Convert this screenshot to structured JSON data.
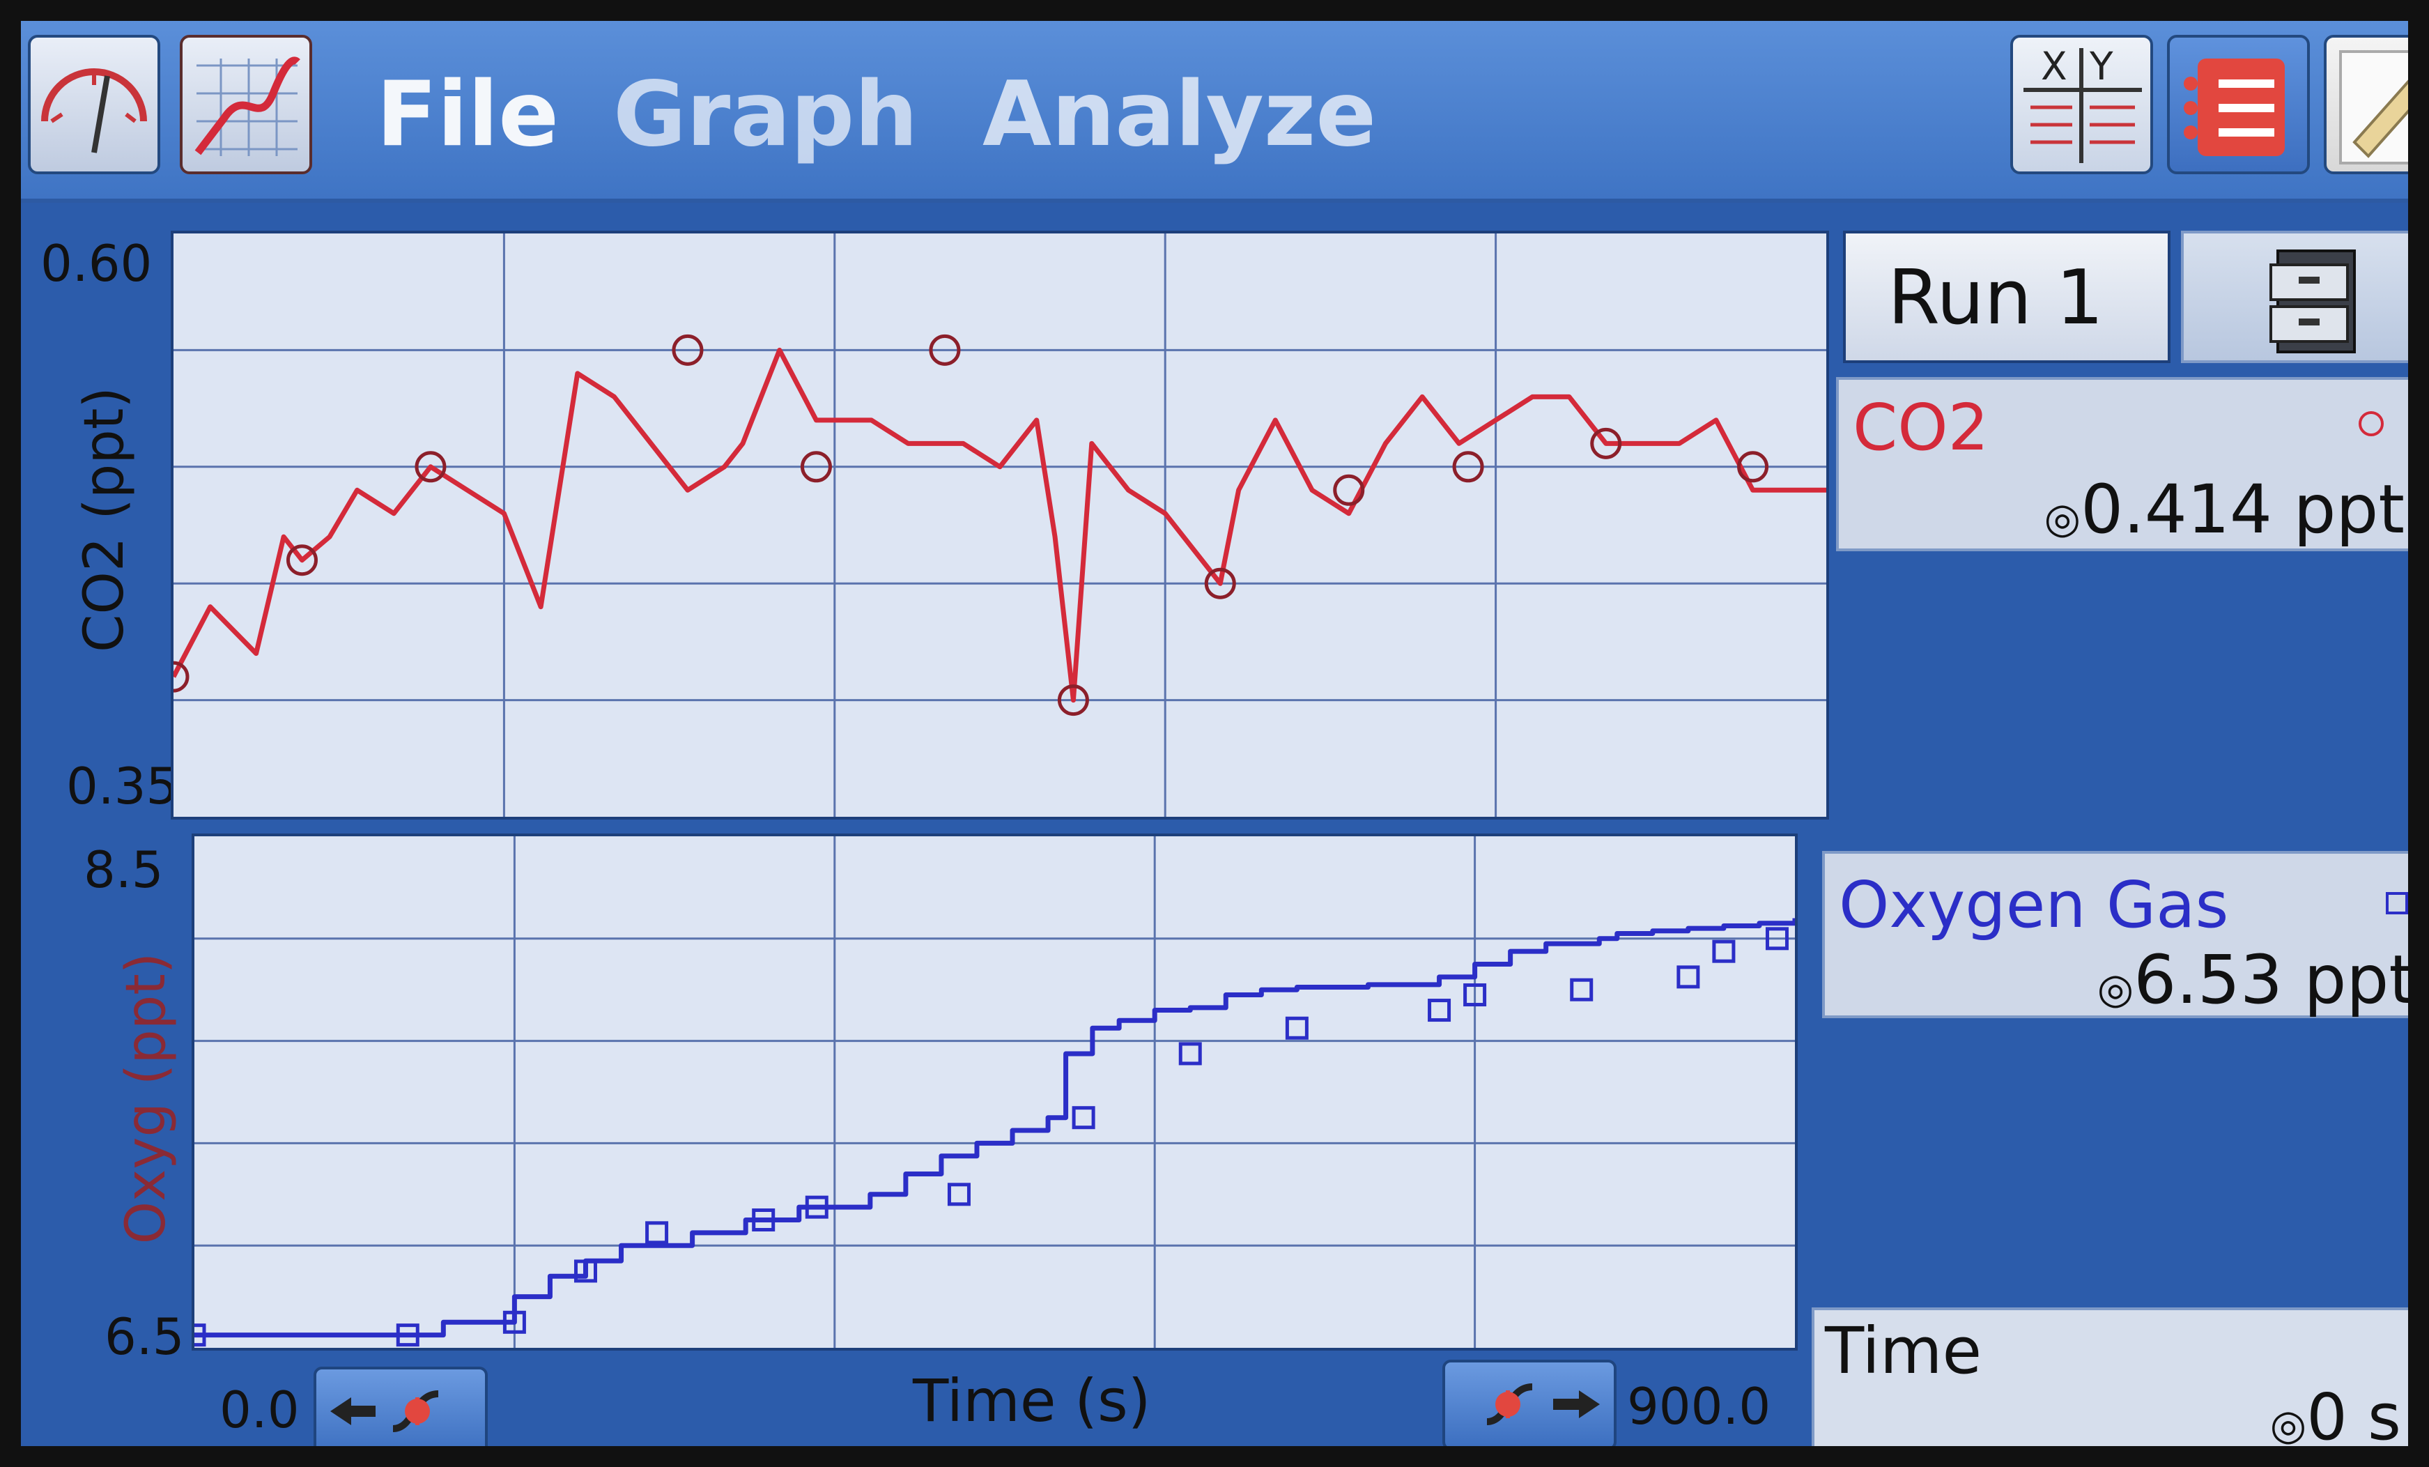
{
  "menu": {
    "file": "File",
    "graph": "Graph",
    "analyze": "Analyze"
  },
  "icons": {
    "meter": "meter-icon",
    "graph": "graph-icon",
    "table": "xy-table-icon",
    "list": "list-icon",
    "notes": "notes-icon",
    "cabinet": "file-cabinet-icon"
  },
  "run": {
    "label": "Run 1"
  },
  "sensors": {
    "co2": {
      "name": "CO2",
      "value": "0.414 ppt",
      "color": "#d42a3a"
    },
    "oxygen": {
      "name": "Oxygen Gas",
      "value": "6.53 ppt",
      "color": "#2b2ec7"
    },
    "time": {
      "name": "Time",
      "value": "0 s"
    }
  },
  "graph": {
    "xlabel": "Time (s)",
    "x_min_label": "0.0",
    "x_max_label": "900.0",
    "top": {
      "ylabel": "CO2 (ppt)",
      "y_max_label": "0.60",
      "y_min_label": "0.35"
    },
    "bottom": {
      "ylabel": "Oxyg (ppt)",
      "y_max_label": "8.5",
      "y_min_label": "6.5"
    }
  },
  "chart_data": [
    {
      "type": "line",
      "title": "",
      "xlabel": "Time (s)",
      "ylabel": "CO2 (ppt)",
      "xlim": [
        0,
        900
      ],
      "ylim": [
        0.35,
        0.6
      ],
      "color": "#d42a3a",
      "series": [
        {
          "x": [
            0,
            20,
            45,
            60,
            70,
            85,
            100,
            120,
            140,
            160,
            180,
            200,
            220,
            240,
            260,
            270,
            280,
            300,
            310,
            330,
            350,
            380,
            400,
            430,
            450,
            470,
            480,
            490,
            500,
            520,
            540,
            560,
            570,
            580,
            600,
            620,
            640,
            660,
            680,
            700,
            720,
            740,
            760,
            780,
            800,
            820,
            840,
            860,
            880,
            900
          ],
          "y": [
            0.41,
            0.44,
            0.42,
            0.47,
            0.46,
            0.47,
            0.49,
            0.48,
            0.5,
            0.49,
            0.48,
            0.44,
            0.54,
            0.53,
            0.51,
            0.5,
            0.49,
            0.5,
            0.51,
            0.55,
            0.52,
            0.52,
            0.51,
            0.51,
            0.5,
            0.52,
            0.47,
            0.4,
            0.51,
            0.49,
            0.48,
            0.46,
            0.45,
            0.49,
            0.52,
            0.49,
            0.48,
            0.51,
            0.53,
            0.51,
            0.52,
            0.53,
            0.53,
            0.51,
            0.51,
            0.51,
            0.52,
            0.49,
            0.49,
            0.49
          ]
        }
      ],
      "markers_x": [
        0,
        70,
        140,
        280,
        350,
        420,
        490,
        570,
        640,
        705,
        780,
        860
      ],
      "markers_y": [
        0.41,
        0.46,
        0.5,
        0.55,
        0.5,
        0.55,
        0.4,
        0.45,
        0.49,
        0.5,
        0.51,
        0.5
      ]
    },
    {
      "type": "line",
      "title": "",
      "xlabel": "Time (s)",
      "ylabel": "Oxyg (ppt)",
      "xlim": [
        0,
        900
      ],
      "ylim": [
        6.5,
        8.5
      ],
      "color": "#2b2ec7",
      "series": [
        {
          "x": [
            0,
            60,
            120,
            140,
            180,
            200,
            220,
            240,
            280,
            310,
            340,
            380,
            400,
            420,
            440,
            460,
            480,
            490,
            505,
            520,
            540,
            560,
            580,
            600,
            620,
            640,
            660,
            700,
            720,
            740,
            760,
            790,
            800,
            820,
            840,
            860,
            880,
            900
          ],
          "y": [
            6.55,
            6.55,
            6.55,
            6.6,
            6.7,
            6.78,
            6.84,
            6.9,
            6.95,
            7.0,
            7.05,
            7.1,
            7.18,
            7.25,
            7.3,
            7.35,
            7.4,
            7.65,
            7.75,
            7.78,
            7.82,
            7.83,
            7.88,
            7.9,
            7.91,
            7.91,
            7.92,
            7.95,
            8.0,
            8.05,
            8.08,
            8.1,
            8.12,
            8.13,
            8.14,
            8.15,
            8.16,
            8.18
          ]
        }
      ],
      "markers_x": [
        0,
        120,
        180,
        220,
        260,
        320,
        350,
        430,
        500,
        560,
        620,
        700,
        720,
        780,
        840,
        860,
        890
      ],
      "markers_y": [
        6.55,
        6.55,
        6.6,
        6.8,
        6.95,
        7.0,
        7.05,
        7.1,
        7.4,
        7.65,
        7.75,
        7.82,
        7.88,
        7.9,
        7.95,
        8.05,
        8.1
      ]
    }
  ]
}
